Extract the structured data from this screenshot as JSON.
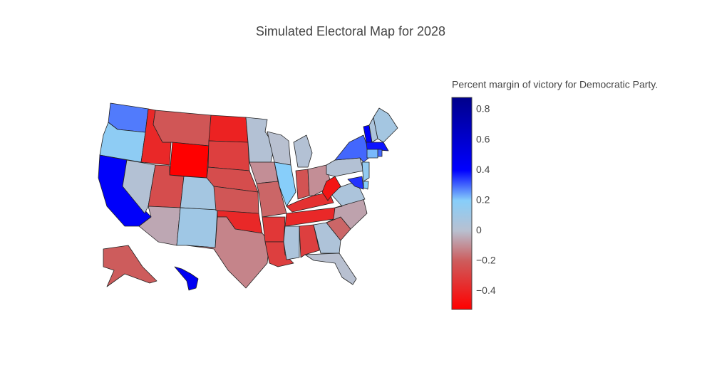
{
  "chart_data": {
    "type": "choropleth",
    "title": "Simulated Electoral Map for 2028",
    "colorbar_title": "Percent margin of victory for Democratic Party.",
    "values": [
      0.28,
      0.17,
      0.42,
      0.02,
      -0.38,
      -0.22,
      -0.52,
      -0.25,
      -0.05,
      0.08,
      0.1,
      -0.4,
      -0.3,
      -0.25,
      -0.22,
      -0.38,
      -0.12,
      0.02,
      -0.1,
      -0.18,
      -0.33,
      -0.3,
      0.0,
      0.2,
      0.02,
      -0.23,
      -0.1,
      -0.35,
      -0.38,
      0.05,
      -0.3,
      0.04,
      0.0,
      -0.18,
      -0.06,
      0.05,
      -0.45,
      0.02,
      0.3,
      0.42,
      0.05,
      0.08,
      0.38,
      0.3,
      0.22,
      0.15,
      0.2,
      0.35,
      -0.2,
      0.45
    ],
    "zlim": [
      -0.52,
      0.88
    ],
    "colorscale": [
      [
        0,
        "#ff0000"
      ],
      [
        0.229,
        "#cd5c5c"
      ],
      [
        0.371,
        "#b8c0d0"
      ],
      [
        0.514,
        "#87cefa"
      ],
      [
        0.657,
        "#0000ff"
      ],
      [
        1,
        "#00008b"
      ]
    ],
    "cticks": [
      {
        "value": -0.4,
        "label": "−0.4"
      },
      {
        "value": -0.2,
        "label": "−0.2"
      },
      0,
      0.2,
      0.4,
      0.6,
      0.8
    ]
  }
}
